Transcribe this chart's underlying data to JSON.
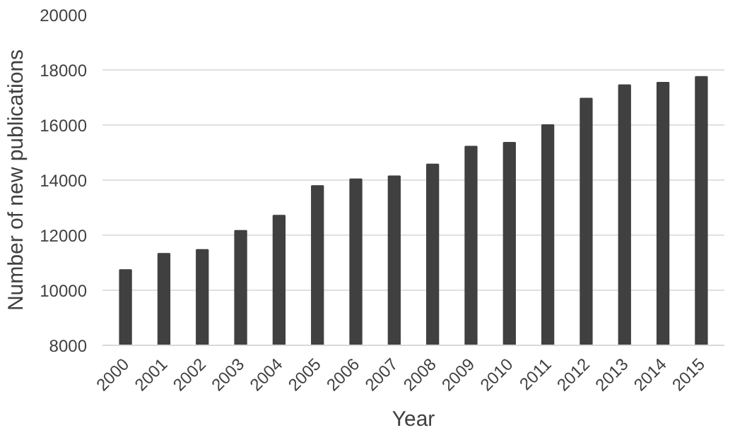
{
  "chart_data": {
    "type": "bar",
    "xlabel": "Year",
    "ylabel": "Number of new publications",
    "categories": [
      "2000",
      "2001",
      "2002",
      "2003",
      "2004",
      "2005",
      "2006",
      "2007",
      "2008",
      "2009",
      "2010",
      "2011",
      "2012",
      "2013",
      "2014",
      "2015"
    ],
    "values": [
      10740,
      11330,
      11470,
      12160,
      12710,
      13790,
      14030,
      14140,
      14570,
      15220,
      15360,
      16000,
      16960,
      17450,
      17540,
      17750
    ],
    "color": "#404040",
    "ylim": [
      8000,
      20000
    ],
    "yticks": [
      8000,
      10000,
      12000,
      14000,
      16000,
      18000,
      20000
    ],
    "grid": "y"
  }
}
